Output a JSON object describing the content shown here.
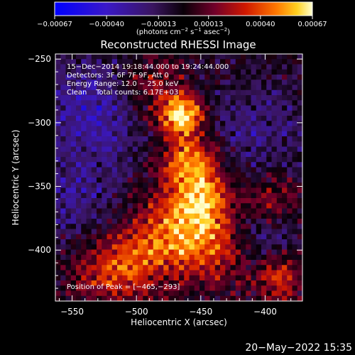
{
  "chart_data": {
    "type": "heatmap",
    "title": "Reconstructed RHESSI Image",
    "xlabel": "Heliocentric X (arcsec)",
    "ylabel": "Heliocentric Y (arcsec)",
    "xlim": [
      -563,
      -371
    ],
    "ylim": [
      -440,
      -246
    ],
    "x_ticks": [
      -550,
      -500,
      -450,
      -400
    ],
    "y_ticks": [
      -250,
      -300,
      -350,
      -400
    ],
    "x_tick_labels": [
      "−550",
      "−500",
      "−450",
      "−400"
    ],
    "y_tick_labels": [
      "−250",
      "−300",
      "−350",
      "−400"
    ],
    "colorbar": {
      "ticks": [
        -0.00067,
        -0.0004,
        -0.00013,
        0.00013,
        0.0004,
        0.00067
      ],
      "tick_labels": [
        "−0.00067",
        "−0.00040",
        "−0.00013",
        "0.00013",
        "0.00040",
        "0.00067"
      ],
      "units_label": "(photons cm^-2 s^-1 asec^-2)",
      "range": [
        -0.00067,
        0.00067
      ]
    },
    "annotations": [
      "15−Dec−2014 19:18:44.000 to 19:24:44.000",
      "Detectors: 3F 6F 7F 9F, Att 0",
      "Energy Range: 12.0 − 25.0 keV",
      "Clean    Total counts: 6.17E+03"
    ],
    "peak_label": "Position of Peak = [−465,−293]",
    "peak_position": [
      -465,
      -293
    ],
    "image_grid": {
      "nx": 48,
      "ny": 48
    },
    "emission_sources": [
      {
        "x": -465,
        "y": -293,
        "amplitude": 1.0,
        "radius": 12
      },
      {
        "x": -458,
        "y": -330,
        "amplitude": 0.72,
        "radius": 16
      },
      {
        "x": -448,
        "y": -360,
        "amplitude": 0.68,
        "radius": 16
      },
      {
        "x": -470,
        "y": -385,
        "amplitude": 0.62,
        "radius": 22
      },
      {
        "x": -505,
        "y": -410,
        "amplitude": 0.5,
        "radius": 20
      },
      {
        "x": -440,
        "y": -400,
        "amplitude": 0.45,
        "radius": 20
      },
      {
        "x": -490,
        "y": -270,
        "amplitude": 0.35,
        "radius": 18
      },
      {
        "x": -530,
        "y": -420,
        "amplitude": 0.3,
        "radius": 18
      },
      {
        "x": -390,
        "y": -420,
        "amplitude": 0.55,
        "radius": 14
      },
      {
        "x": -395,
        "y": -360,
        "amplitude": 0.35,
        "radius": 14
      }
    ],
    "negative_regions": [
      {
        "x": -535,
        "y": -290,
        "amplitude": 0.45,
        "radius": 28
      },
      {
        "x": -410,
        "y": -305,
        "amplitude": 0.3,
        "radius": 26
      },
      {
        "x": -545,
        "y": -360,
        "amplitude": 0.3,
        "radius": 24
      },
      {
        "x": -400,
        "y": -395,
        "amplitude": 0.3,
        "radius": 18
      }
    ]
  },
  "footer": {
    "timestamp": "20−May−2022 15:35"
  },
  "colors": {
    "background": "#000000",
    "text": "#ffffff",
    "axes": "#ffffff"
  }
}
